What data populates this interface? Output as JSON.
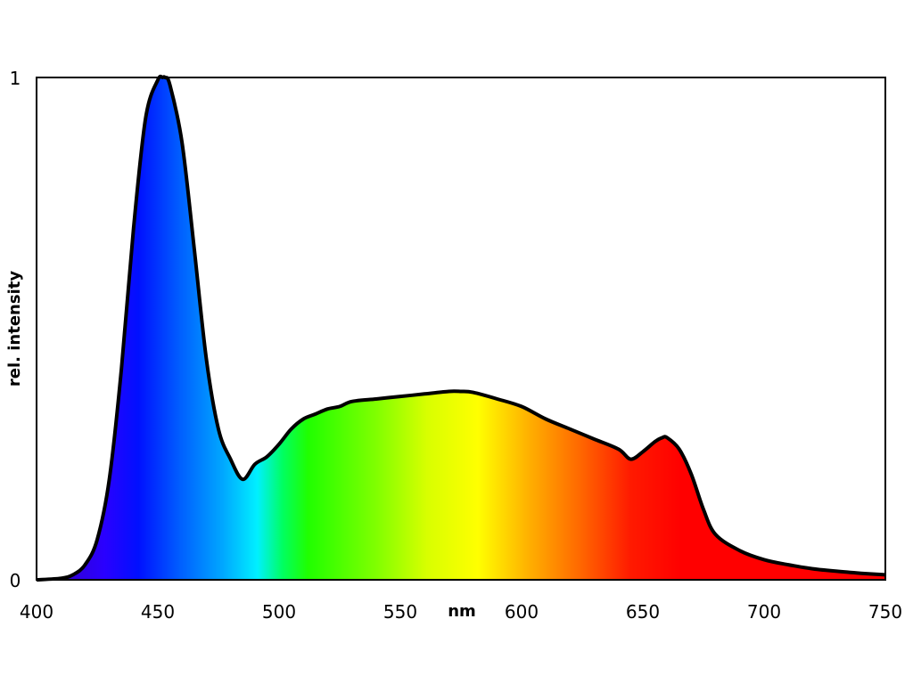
{
  "chart_data": {
    "type": "area",
    "title": "",
    "xlabel": "nm",
    "ylabel": "rel. intensity",
    "xlim": [
      400,
      750
    ],
    "ylim": [
      0,
      1
    ],
    "grid": false,
    "legend": "none",
    "x_ticks": [
      400,
      450,
      500,
      550,
      600,
      650,
      700,
      750
    ],
    "y_ticks": [
      0,
      1
    ],
    "x_tick_labels": [
      "400",
      "450",
      "500",
      "550",
      "600",
      "650",
      "700",
      "750"
    ],
    "y_tick_labels": [
      "0",
      "1"
    ],
    "fill": "visible spectrum gradient",
    "line_color": "#000000",
    "series": [
      {
        "x": [
          400,
          410,
          415,
          420,
          425,
          430,
          435,
          440,
          445,
          450,
          452,
          453,
          455,
          460,
          465,
          470,
          475,
          480,
          485,
          490,
          495,
          500,
          505,
          510,
          515,
          520,
          525,
          530,
          540,
          550,
          560,
          570,
          575,
          580,
          590,
          600,
          610,
          620,
          630,
          640,
          645,
          650,
          655,
          658,
          660,
          665,
          670,
          675,
          680,
          690,
          700,
          710,
          720,
          730,
          740,
          750
        ],
        "y": [
          0.0,
          0.003,
          0.01,
          0.03,
          0.08,
          0.2,
          0.42,
          0.7,
          0.92,
          0.995,
          1.0,
          1.0,
          0.985,
          0.87,
          0.66,
          0.44,
          0.3,
          0.24,
          0.2,
          0.23,
          0.245,
          0.27,
          0.3,
          0.32,
          0.33,
          0.34,
          0.345,
          0.355,
          0.36,
          0.365,
          0.37,
          0.375,
          0.375,
          0.373,
          0.36,
          0.345,
          0.32,
          0.3,
          0.28,
          0.26,
          0.24,
          0.255,
          0.275,
          0.283,
          0.283,
          0.26,
          0.21,
          0.14,
          0.09,
          0.058,
          0.04,
          0.03,
          0.022,
          0.017,
          0.013,
          0.01
        ]
      }
    ]
  }
}
